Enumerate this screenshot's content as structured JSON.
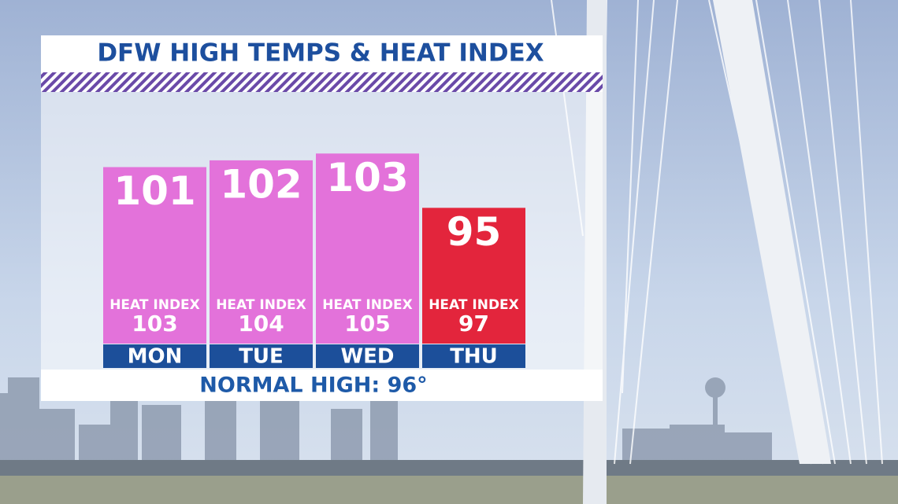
{
  "chart_data": {
    "type": "bar",
    "title": "DFW HIGH TEMPS & HEAT INDEX",
    "categories": [
      "MON",
      "TUE",
      "WED",
      "THU"
    ],
    "values": [
      101,
      102,
      103,
      95
    ],
    "colors": [
      "#e372da",
      "#e372da",
      "#e372da",
      "#e3253c"
    ],
    "heat_index": {
      "label": "HEAT INDEX",
      "values": [
        103,
        104,
        105,
        97
      ]
    },
    "note": "NORMAL HIGH: 96°",
    "ylim": [
      75,
      105
    ]
  }
}
